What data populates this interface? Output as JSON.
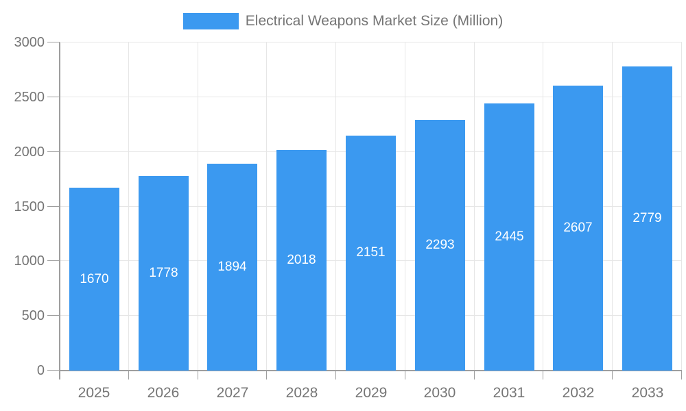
{
  "chart_data": {
    "type": "bar",
    "title": "Electrical Weapons Market Size (Million)",
    "series_name": "Electrical Weapons Market Size (Million)",
    "categories": [
      "2025",
      "2026",
      "2027",
      "2028",
      "2029",
      "2030",
      "2031",
      "2032",
      "2033"
    ],
    "values": [
      1670,
      1778,
      1894,
      2018,
      2151,
      2293,
      2445,
      2607,
      2779
    ],
    "xlabel": "",
    "ylabel": "",
    "ylim": [
      0,
      3000
    ],
    "yticks": [
      0,
      500,
      1000,
      1500,
      2000,
      2500,
      3000
    ],
    "grid": true,
    "legend_position": "top",
    "colors": {
      "bar": "#3b99f0",
      "value_label": "#ffffff",
      "axis_text": "#757575",
      "grid_line": "#e6e6e6",
      "axis_line": "#9e9e9e"
    }
  }
}
